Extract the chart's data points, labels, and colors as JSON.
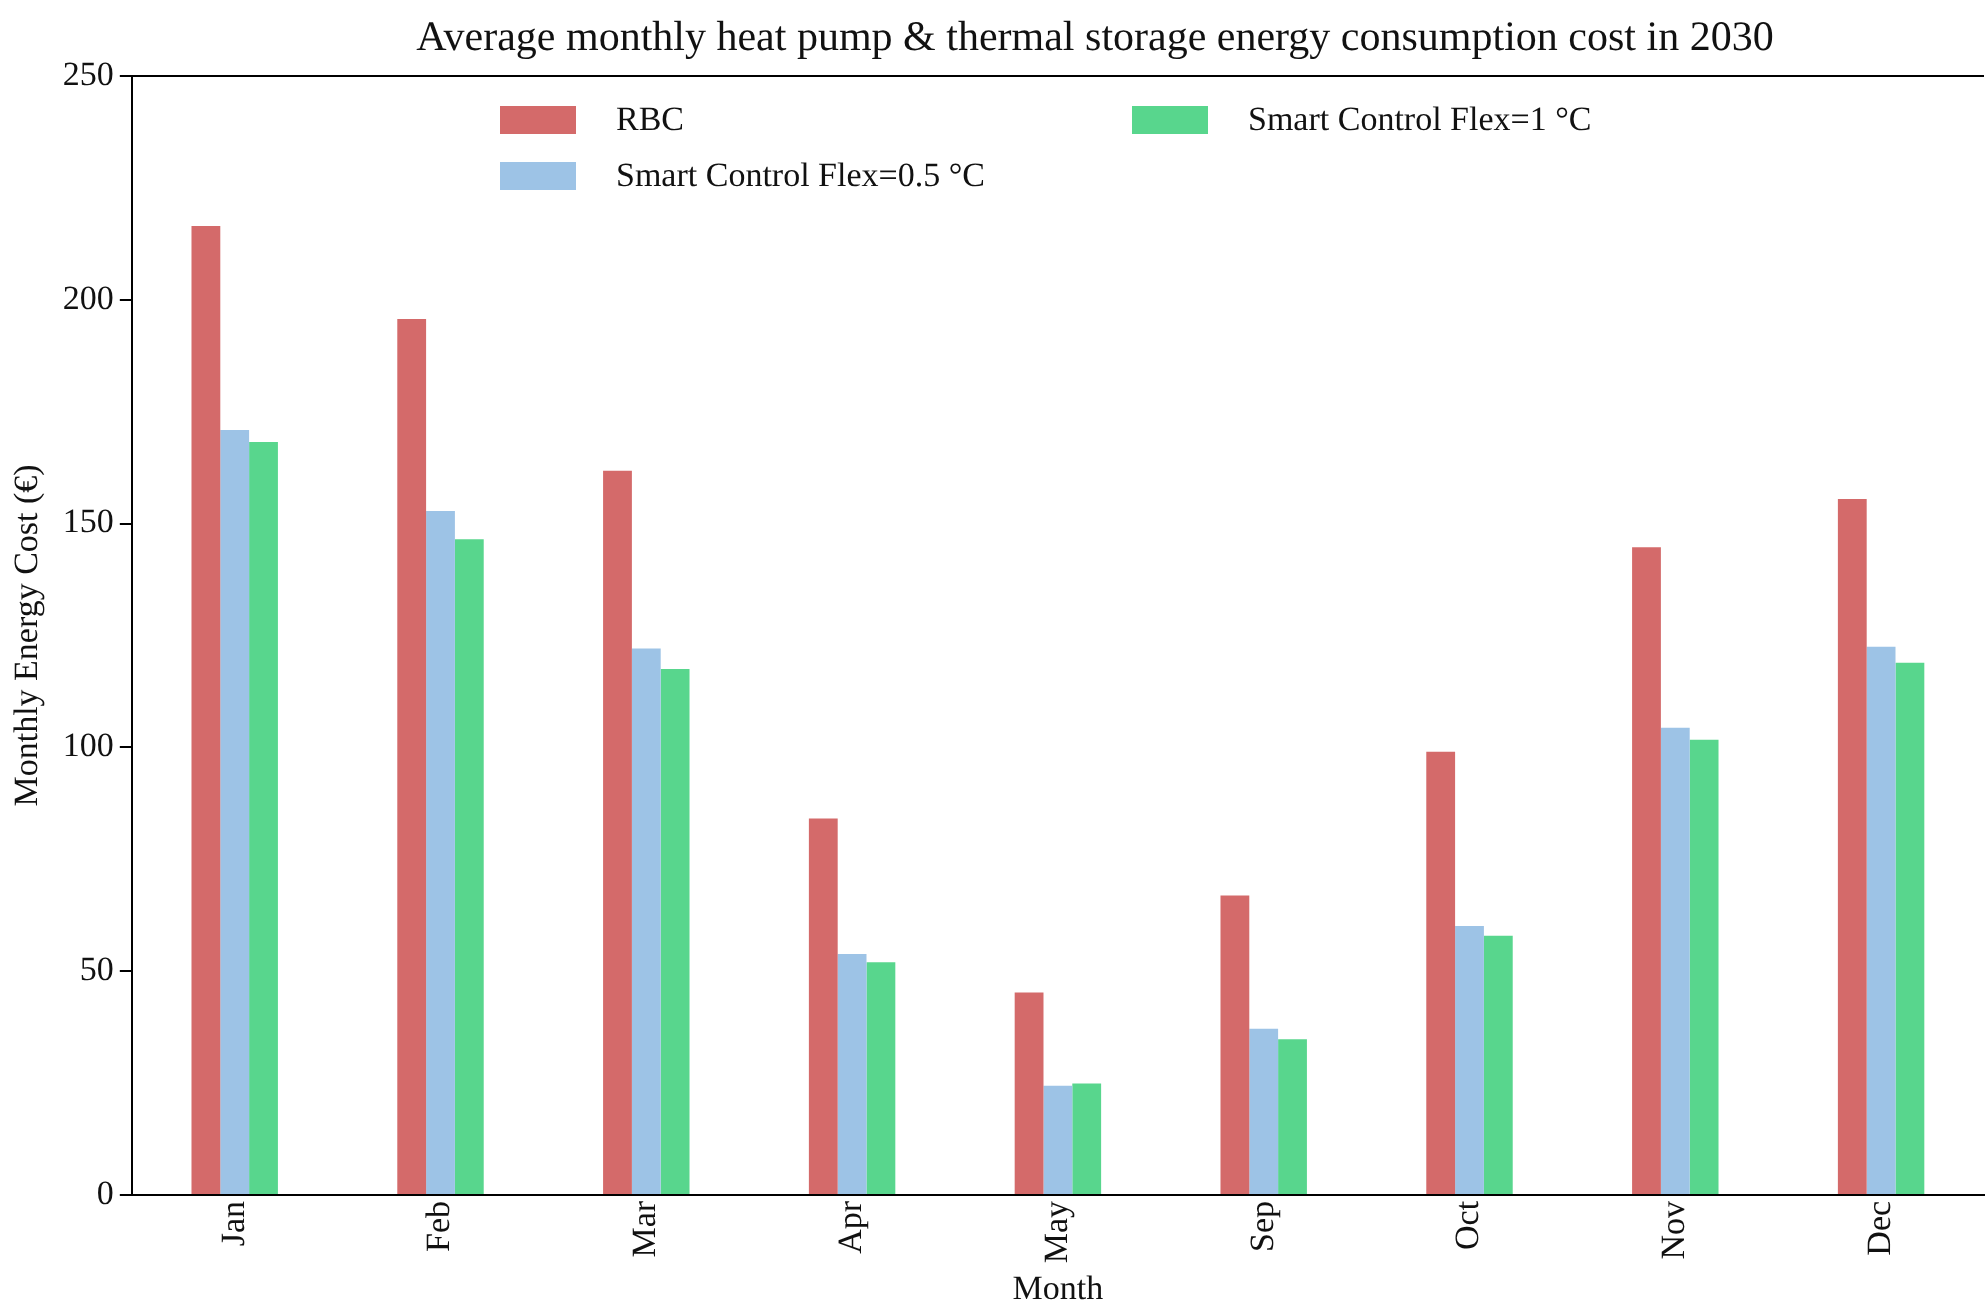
{
  "chart_data": {
    "type": "bar",
    "title": "Average monthly heat pump & thermal storage energy consumption cost in 2030",
    "xlabel": "Month",
    "ylabel": "Monthly Energy Cost (€)",
    "categories": [
      "Jan",
      "Feb",
      "Mar",
      "Apr",
      "May",
      "Sep",
      "Oct",
      "Nov",
      "Dec"
    ],
    "series": [
      {
        "name": "RBC",
        "color": "#d46a6a",
        "values": [
          216.5,
          195.7,
          161.8,
          84.1,
          45.2,
          66.9,
          99.0,
          144.7,
          155.5
        ]
      },
      {
        "name": "Smart Control Flex=0.5 °C",
        "color": "#9dc3e6",
        "values": [
          170.9,
          152.8,
          122.1,
          53.8,
          24.4,
          37.1,
          60.1,
          104.4,
          122.5
        ]
      },
      {
        "name": "Smart Control Flex=1 °C",
        "color": "#58d68d",
        "values": [
          168.2,
          146.5,
          117.5,
          52.0,
          24.9,
          34.8,
          57.9,
          101.7,
          118.9
        ]
      }
    ],
    "ylim": [
      0,
      250
    ],
    "yticks": [
      0,
      50,
      100,
      150,
      200,
      250
    ],
    "grid": false,
    "legend": "top"
  }
}
